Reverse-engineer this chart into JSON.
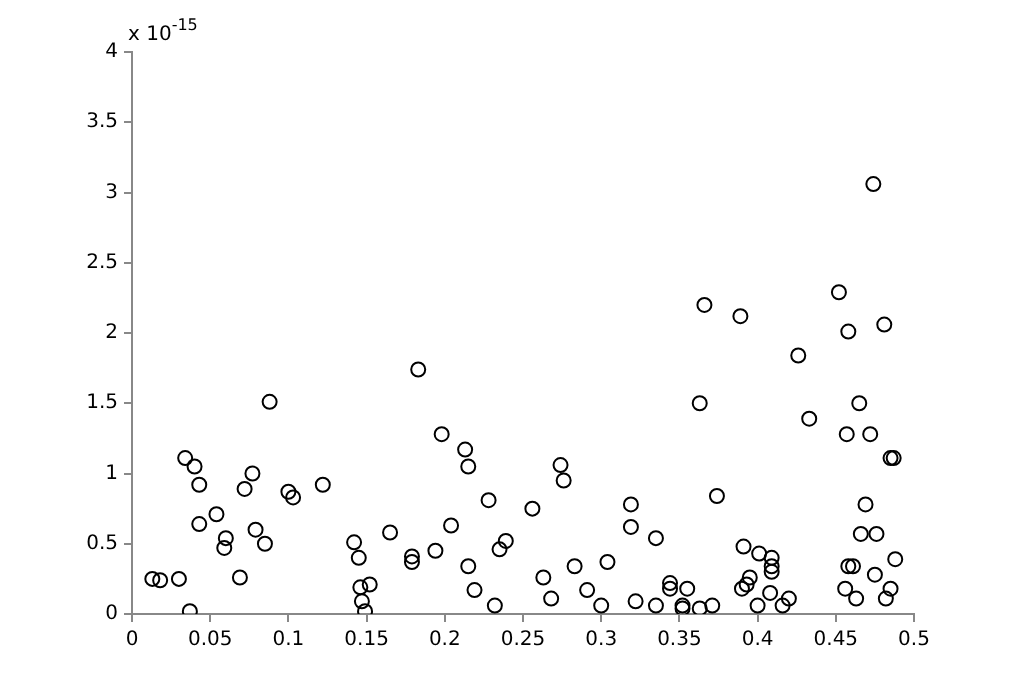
{
  "chart_data": {
    "type": "scatter",
    "marker": "circle",
    "xlim": [
      0,
      0.5
    ],
    "xticks": [
      0,
      0.05,
      0.1,
      0.15,
      0.2,
      0.25,
      0.3,
      0.35,
      0.4,
      0.45,
      0.5
    ],
    "ylim": [
      0,
      4
    ],
    "yticks": [
      0,
      0.5,
      1,
      1.5,
      2,
      2.5,
      3,
      3.5,
      4
    ],
    "annotations": [
      "x 10$^{-15}$"
    ],
    "series": [
      {
        "color": "#000000",
        "x": [
          0.013,
          0.018,
          0.03,
          0.037,
          0.034,
          0.04,
          0.043,
          0.043,
          0.054,
          0.06,
          0.059,
          0.069,
          0.072,
          0.077,
          0.079,
          0.085,
          0.088,
          0.1,
          0.103,
          0.122,
          0.142,
          0.145,
          0.146,
          0.152,
          0.147,
          0.149,
          0.165,
          0.183,
          0.198,
          0.213,
          0.215,
          0.228,
          0.204,
          0.179,
          0.179,
          0.194,
          0.215,
          0.219,
          0.232,
          0.235,
          0.239,
          0.256,
          0.263,
          0.268,
          0.274,
          0.276,
          0.283,
          0.291,
          0.3,
          0.304,
          0.319,
          0.319,
          0.322,
          0.335,
          0.335,
          0.344,
          0.344,
          0.355,
          0.352,
          0.352,
          0.363,
          0.371,
          0.366,
          0.363,
          0.374,
          0.389,
          0.391,
          0.401,
          0.409,
          0.409,
          0.409,
          0.395,
          0.393,
          0.39,
          0.408,
          0.4,
          0.416,
          0.42,
          0.426,
          0.433,
          0.452,
          0.458,
          0.481,
          0.465,
          0.457,
          0.472,
          0.485,
          0.487,
          0.469,
          0.466,
          0.476,
          0.458,
          0.461,
          0.488,
          0.475,
          0.456,
          0.463,
          0.485,
          0.482,
          0.474
        ],
        "values": [
          0.25,
          0.24,
          0.25,
          0.02,
          1.11,
          1.05,
          0.92,
          0.64,
          0.71,
          0.54,
          0.47,
          0.26,
          0.89,
          1.0,
          0.6,
          0.5,
          1.51,
          0.87,
          0.83,
          0.92,
          0.51,
          0.4,
          0.19,
          0.21,
          0.09,
          0.02,
          0.58,
          1.74,
          1.28,
          1.17,
          1.05,
          0.81,
          0.63,
          0.41,
          0.37,
          0.45,
          0.34,
          0.17,
          0.06,
          0.46,
          0.52,
          0.75,
          0.26,
          0.11,
          1.06,
          0.95,
          0.34,
          0.17,
          0.06,
          0.37,
          0.78,
          0.62,
          0.09,
          0.54,
          0.06,
          0.22,
          0.18,
          0.18,
          0.06,
          0.04,
          0.04,
          0.06,
          2.2,
          1.5,
          0.84,
          2.12,
          0.48,
          0.43,
          0.4,
          0.34,
          0.3,
          0.26,
          0.21,
          0.18,
          0.15,
          0.06,
          0.06,
          0.11,
          1.84,
          1.39,
          2.29,
          2.01,
          2.06,
          1.5,
          1.28,
          1.28,
          1.11,
          1.11,
          0.78,
          0.57,
          0.57,
          0.34,
          0.34,
          0.39,
          0.28,
          0.18,
          0.11,
          0.18,
          0.11,
          3.06
        ]
      }
    ]
  }
}
